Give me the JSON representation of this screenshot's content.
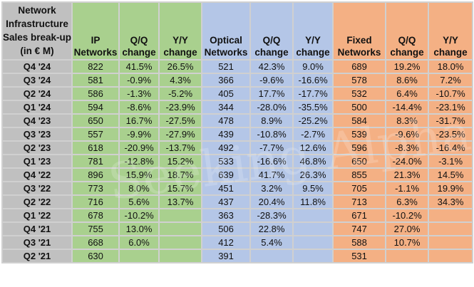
{
  "table": {
    "corner_header": "Network Infrastructure Sales break-up (in € M)",
    "corner_header_lines": [
      "Network",
      "Infrastructure",
      "Sales break-up",
      "(in € M)"
    ],
    "columns": [
      {
        "group": "ip",
        "line1": "IP",
        "line2": "Networks"
      },
      {
        "group": "ip",
        "line1": "Q/Q",
        "line2": "change"
      },
      {
        "group": "ip",
        "line1": "Y/Y",
        "line2": "change"
      },
      {
        "group": "optical",
        "line1": "Optical",
        "line2": "Networks"
      },
      {
        "group": "optical",
        "line1": "Q/Q",
        "line2": "change"
      },
      {
        "group": "optical",
        "line1": "Y/Y",
        "line2": "change"
      },
      {
        "group": "fixed",
        "line1": "Fixed",
        "line2": "Networks"
      },
      {
        "group": "fixed",
        "line1": "Q/Q",
        "line2": "change"
      },
      {
        "group": "fixed",
        "line1": "Y/Y",
        "line2": "change"
      }
    ],
    "rows": [
      {
        "period": "Q4 '24",
        "cells": [
          "822",
          "41.5%",
          "26.5%",
          "521",
          "42.3%",
          "9.0%",
          "689",
          "19.2%",
          "18.0%"
        ]
      },
      {
        "period": "Q3 '24",
        "cells": [
          "581",
          "-0.9%",
          "4.3%",
          "366",
          "-9.6%",
          "-16.6%",
          "578",
          "8.6%",
          "7.2%"
        ]
      },
      {
        "period": "Q2 '24",
        "cells": [
          "586",
          "-1.3%",
          "-5.2%",
          "405",
          "17.7%",
          "-17.7%",
          "532",
          "6.4%",
          "-10.7%"
        ]
      },
      {
        "period": "Q1 '24",
        "cells": [
          "594",
          "-8.6%",
          "-23.9%",
          "344",
          "-28.0%",
          "-35.5%",
          "500",
          "-14.4%",
          "-23.1%"
        ]
      },
      {
        "period": "Q4 '23",
        "cells": [
          "650",
          "16.7%",
          "-27.5%",
          "478",
          "8.9%",
          "-25.2%",
          "584",
          "8.3%",
          "-31.7%"
        ]
      },
      {
        "period": "Q3 '23",
        "cells": [
          "557",
          "-9.9%",
          "-27.9%",
          "439",
          "-10.8%",
          "-2.7%",
          "539",
          "-9.6%",
          "-23.5%"
        ]
      },
      {
        "period": "Q2 '23",
        "cells": [
          "618",
          "-20.9%",
          "-13.7%",
          "492",
          "-7.7%",
          "12.6%",
          "596",
          "-8.3%",
          "-16.4%"
        ]
      },
      {
        "period": "Q1 '23",
        "cells": [
          "781",
          "-12.8%",
          "15.2%",
          "533",
          "-16.6%",
          "46.8%",
          "650",
          "-24.0%",
          "-3.1%"
        ]
      },
      {
        "period": "Q4 '22",
        "cells": [
          "896",
          "15.9%",
          "18.7%",
          "639",
          "41.7%",
          "26.3%",
          "855",
          "21.3%",
          "14.5%"
        ]
      },
      {
        "period": "Q3 '22",
        "cells": [
          "773",
          "8.0%",
          "15.7%",
          "451",
          "3.2%",
          "9.5%",
          "705",
          "-1.1%",
          "19.9%"
        ]
      },
      {
        "period": "Q2 '22",
        "cells": [
          "716",
          "5.6%",
          "13.7%",
          "437",
          "20.4%",
          "11.8%",
          "713",
          "6.3%",
          "34.3%"
        ]
      },
      {
        "period": "Q1 '22",
        "cells": [
          "678",
          "-10.2%",
          "",
          "363",
          "-28.3%",
          "",
          "671",
          "-10.2%",
          ""
        ]
      },
      {
        "period": "Q4 '21",
        "cells": [
          "755",
          "13.0%",
          "",
          "506",
          "22.8%",
          "",
          "747",
          "27.0%",
          ""
        ]
      },
      {
        "period": "Q3 '21",
        "cells": [
          "668",
          "6.0%",
          "",
          "412",
          "5.4%",
          "",
          "588",
          "10.7%",
          ""
        ]
      },
      {
        "period": "Q2 '21",
        "cells": [
          "630",
          "",
          "",
          "391",
          "",
          "",
          "531",
          "",
          ""
        ]
      }
    ]
  },
  "colors": {
    "label_column": "#c0c0c0",
    "ip_networks": "#a9d08e",
    "optical_networks": "#b4c6e7",
    "fixed_networks": "#f4b084",
    "gridlines": "#d0d0d0"
  },
  "watermark": "Seeking Alpha"
}
